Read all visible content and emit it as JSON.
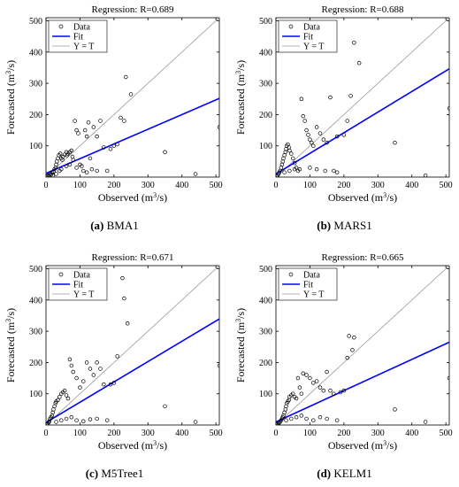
{
  "figure": {
    "panels": [
      {
        "caption_letter": "(a)",
        "caption_name": "BMA1",
        "title": "Regression: R=0.689",
        "xlabel_main": "Observed (m",
        "xlabel_sup": "3",
        "xlabel_tail": "/s)",
        "ylabel_main": "Forecasted (m",
        "ylabel_sup": "3",
        "ylabel_tail": "/s)"
      },
      {
        "caption_letter": "(b)",
        "caption_name": "MARS1",
        "title": "Regression: R=0.688",
        "xlabel_main": "Observed (m",
        "xlabel_sup": "3",
        "xlabel_tail": "/s)",
        "ylabel_main": "Forecasted (m",
        "ylabel_sup": "3",
        "ylabel_tail": "/s)"
      },
      {
        "caption_letter": "(c)",
        "caption_name": "M5Tree1",
        "title": "Regression: R=0.671",
        "xlabel_main": "Observed (m",
        "xlabel_sup": "3",
        "xlabel_tail": "/s)",
        "ylabel_main": "Forecasted (m",
        "ylabel_sup": "3",
        "ylabel_tail": "/s)"
      },
      {
        "caption_letter": "(d)",
        "caption_name": "KELM1",
        "title": "Regression: R=0.665",
        "xlabel_main": "Observed (m",
        "xlabel_sup": "3",
        "xlabel_tail": "/s)",
        "ylabel_main": "Forecasted (m",
        "ylabel_sup": "3",
        "ylabel_tail": "/s)"
      }
    ]
  },
  "chart_data": [
    {
      "type": "scatter",
      "title": "Regression: R=0.689",
      "xlabel": "Observed (m3/s)",
      "ylabel": "Forecasted (m3/s)",
      "xlim": [
        0,
        510
      ],
      "ylim": [
        0,
        510
      ],
      "xticks": [
        0,
        100,
        200,
        300,
        400,
        500
      ],
      "yticks": [
        100,
        200,
        300,
        400,
        500
      ],
      "grid": false,
      "legend_position": "top-left",
      "legend": [
        "Data",
        "Fit",
        "Y = T"
      ],
      "colors": {
        "data": "#000000",
        "fit": "#0000ff",
        "identity": "#999999"
      },
      "fit": {
        "slope": 0.47,
        "intercept": 12
      },
      "identity": {
        "slope": 1,
        "intercept": 0
      },
      "points": [
        [
          2,
          2
        ],
        [
          5,
          4
        ],
        [
          8,
          6
        ],
        [
          12,
          10
        ],
        [
          15,
          8
        ],
        [
          18,
          14
        ],
        [
          20,
          5
        ],
        [
          22,
          18
        ],
        [
          25,
          25
        ],
        [
          28,
          30
        ],
        [
          30,
          40
        ],
        [
          32,
          50
        ],
        [
          35,
          60
        ],
        [
          38,
          70
        ],
        [
          40,
          20
        ],
        [
          42,
          75
        ],
        [
          45,
          60
        ],
        [
          48,
          55
        ],
        [
          50,
          65
        ],
        [
          55,
          72
        ],
        [
          60,
          80
        ],
        [
          62,
          70
        ],
        [
          65,
          75
        ],
        [
          70,
          80
        ],
        [
          75,
          85
        ],
        [
          78,
          65
        ],
        [
          80,
          55
        ],
        [
          85,
          180
        ],
        [
          90,
          150
        ],
        [
          95,
          140
        ],
        [
          100,
          40
        ],
        [
          105,
          35
        ],
        [
          110,
          20
        ],
        [
          115,
          150
        ],
        [
          120,
          130
        ],
        [
          125,
          175
        ],
        [
          130,
          60
        ],
        [
          140,
          160
        ],
        [
          150,
          130
        ],
        [
          160,
          180
        ],
        [
          170,
          95
        ],
        [
          180,
          20
        ],
        [
          190,
          90
        ],
        [
          200,
          100
        ],
        [
          210,
          105
        ],
        [
          220,
          190
        ],
        [
          230,
          180
        ],
        [
          235,
          320
        ],
        [
          250,
          265
        ],
        [
          350,
          80
        ],
        [
          440,
          10
        ],
        [
          510,
          160
        ],
        [
          30,
          10
        ],
        [
          45,
          25
        ],
        [
          60,
          35
        ],
        [
          70,
          40
        ],
        [
          90,
          30
        ],
        [
          120,
          15
        ],
        [
          135,
          25
        ],
        [
          150,
          20
        ]
      ]
    },
    {
      "type": "scatter",
      "title": "Regression: R=0.688",
      "xlabel": "Observed (m3/s)",
      "ylabel": "Forecasted (m3/s)",
      "xlim": [
        0,
        510
      ],
      "ylim": [
        0,
        510
      ],
      "xticks": [
        0,
        100,
        200,
        300,
        400,
        500
      ],
      "yticks": [
        100,
        200,
        300,
        400,
        500
      ],
      "grid": false,
      "legend_position": "top-left",
      "legend": [
        "Data",
        "Fit",
        "Y = T"
      ],
      "colors": {
        "data": "#000000",
        "fit": "#0000ff",
        "identity": "#999999"
      },
      "fit": {
        "slope": 0.66,
        "intercept": 10
      },
      "identity": {
        "slope": 1,
        "intercept": 0
      },
      "points": [
        [
          2,
          2
        ],
        [
          5,
          5
        ],
        [
          8,
          10
        ],
        [
          10,
          15
        ],
        [
          12,
          20
        ],
        [
          15,
          30
        ],
        [
          18,
          40
        ],
        [
          20,
          50
        ],
        [
          22,
          60
        ],
        [
          25,
          70
        ],
        [
          28,
          80
        ],
        [
          30,
          90
        ],
        [
          32,
          100
        ],
        [
          35,
          105
        ],
        [
          38,
          95
        ],
        [
          40,
          85
        ],
        [
          45,
          75
        ],
        [
          50,
          60
        ],
        [
          55,
          45
        ],
        [
          60,
          30
        ],
        [
          70,
          25
        ],
        [
          75,
          250
        ],
        [
          80,
          195
        ],
        [
          85,
          180
        ],
        [
          90,
          150
        ],
        [
          95,
          135
        ],
        [
          100,
          120
        ],
        [
          105,
          110
        ],
        [
          110,
          100
        ],
        [
          120,
          160
        ],
        [
          130,
          140
        ],
        [
          140,
          120
        ],
        [
          150,
          110
        ],
        [
          160,
          255
        ],
        [
          170,
          20
        ],
        [
          180,
          130
        ],
        [
          200,
          135
        ],
        [
          210,
          180
        ],
        [
          220,
          260
        ],
        [
          230,
          430
        ],
        [
          245,
          365
        ],
        [
          350,
          110
        ],
        [
          440,
          5
        ],
        [
          510,
          220
        ],
        [
          25,
          15
        ],
        [
          40,
          20
        ],
        [
          55,
          25
        ],
        [
          65,
          20
        ],
        [
          100,
          30
        ],
        [
          120,
          25
        ],
        [
          145,
          20
        ],
        [
          180,
          15
        ]
      ]
    },
    {
      "type": "scatter",
      "title": "Regression: R=0.671",
      "xlabel": "Observed (m3/s)",
      "ylabel": "Forecasted (m3/s)",
      "xlim": [
        0,
        510
      ],
      "ylim": [
        0,
        510
      ],
      "xticks": [
        0,
        100,
        200,
        300,
        400,
        500
      ],
      "yticks": [
        100,
        200,
        300,
        400,
        500
      ],
      "grid": false,
      "legend_position": "top-left",
      "legend": [
        "Data",
        "Fit",
        "Y = T"
      ],
      "colors": {
        "data": "#000000",
        "fit": "#0000ff",
        "identity": "#999999"
      },
      "fit": {
        "slope": 0.65,
        "intercept": 8
      },
      "identity": {
        "slope": 1,
        "intercept": 0
      },
      "points": [
        [
          2,
          2
        ],
        [
          5,
          4
        ],
        [
          8,
          8
        ],
        [
          10,
          12
        ],
        [
          12,
          20
        ],
        [
          15,
          25
        ],
        [
          18,
          30
        ],
        [
          20,
          40
        ],
        [
          22,
          50
        ],
        [
          25,
          60
        ],
        [
          28,
          70
        ],
        [
          30,
          75
        ],
        [
          35,
          80
        ],
        [
          40,
          90
        ],
        [
          45,
          100
        ],
        [
          50,
          105
        ],
        [
          55,
          110
        ],
        [
          60,
          95
        ],
        [
          65,
          85
        ],
        [
          70,
          210
        ],
        [
          75,
          190
        ],
        [
          80,
          170
        ],
        [
          90,
          150
        ],
        [
          100,
          120
        ],
        [
          110,
          140
        ],
        [
          120,
          200
        ],
        [
          130,
          180
        ],
        [
          140,
          160
        ],
        [
          150,
          200
        ],
        [
          160,
          180
        ],
        [
          170,
          130
        ],
        [
          190,
          130
        ],
        [
          200,
          135
        ],
        [
          210,
          220
        ],
        [
          225,
          470
        ],
        [
          230,
          405
        ],
        [
          240,
          325
        ],
        [
          350,
          60
        ],
        [
          440,
          10
        ],
        [
          510,
          190
        ],
        [
          30,
          10
        ],
        [
          45,
          15
        ],
        [
          60,
          20
        ],
        [
          75,
          25
        ],
        [
          90,
          15
        ],
        [
          110,
          12
        ],
        [
          130,
          18
        ],
        [
          150,
          20
        ],
        [
          180,
          15
        ]
      ]
    },
    {
      "type": "scatter",
      "title": "Regression: R=0.665",
      "xlabel": "Observed (m3/s)",
      "ylabel": "Forecasted (m3/s)",
      "xlim": [
        0,
        510
      ],
      "ylim": [
        0,
        510
      ],
      "xticks": [
        0,
        100,
        200,
        300,
        400,
        500
      ],
      "yticks": [
        100,
        200,
        300,
        400,
        500
      ],
      "grid": false,
      "legend_position": "top-left",
      "legend": [
        "Data",
        "Fit",
        "Y = T"
      ],
      "colors": {
        "data": "#000000",
        "fit": "#0000ff",
        "identity": "#999999"
      },
      "fit": {
        "slope": 0.5,
        "intercept": 10
      },
      "identity": {
        "slope": 1,
        "intercept": 0
      },
      "points": [
        [
          2,
          2
        ],
        [
          5,
          4
        ],
        [
          8,
          6
        ],
        [
          10,
          8
        ],
        [
          12,
          10
        ],
        [
          15,
          15
        ],
        [
          18,
          20
        ],
        [
          20,
          25
        ],
        [
          22,
          30
        ],
        [
          25,
          40
        ],
        [
          28,
          50
        ],
        [
          30,
          60
        ],
        [
          32,
          70
        ],
        [
          35,
          75
        ],
        [
          38,
          80
        ],
        [
          40,
          90
        ],
        [
          45,
          95
        ],
        [
          50,
          100
        ],
        [
          55,
          90
        ],
        [
          60,
          85
        ],
        [
          65,
          150
        ],
        [
          70,
          120
        ],
        [
          75,
          100
        ],
        [
          80,
          165
        ],
        [
          90,
          160
        ],
        [
          100,
          150
        ],
        [
          110,
          135
        ],
        [
          120,
          140
        ],
        [
          130,
          120
        ],
        [
          140,
          110
        ],
        [
          150,
          170
        ],
        [
          160,
          110
        ],
        [
          170,
          100
        ],
        [
          190,
          105
        ],
        [
          200,
          110
        ],
        [
          210,
          215
        ],
        [
          215,
          285
        ],
        [
          225,
          240
        ],
        [
          230,
          280
        ],
        [
          350,
          50
        ],
        [
          440,
          10
        ],
        [
          510,
          150
        ],
        [
          30,
          15
        ],
        [
          45,
          20
        ],
        [
          60,
          25
        ],
        [
          75,
          30
        ],
        [
          90,
          20
        ],
        [
          110,
          15
        ],
        [
          130,
          25
        ],
        [
          150,
          20
        ],
        [
          180,
          15
        ]
      ]
    }
  ]
}
